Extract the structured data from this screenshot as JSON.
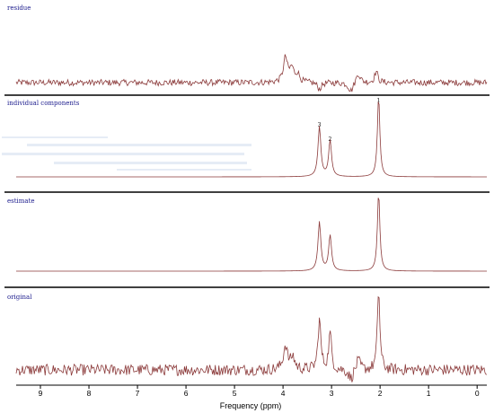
{
  "chart_data": {
    "type": "line",
    "xlabel": "Frequency (ppm)",
    "x_reversed": true,
    "xlim": [
      9.5,
      -0.2
    ],
    "xticks": [
      "9",
      "8",
      "7",
      "6",
      "5",
      "4",
      "3",
      "2",
      "1",
      "0"
    ],
    "xtick_values": [
      9,
      8,
      7,
      6,
      5,
      4,
      3,
      2,
      1,
      0
    ],
    "colors": {
      "trace": "#8b3a3a",
      "label": "#1a1a8c",
      "divider": "#000000"
    },
    "panels": [
      {
        "label": "residue",
        "noise": 0.07,
        "baseline": 0,
        "peaks": [
          {
            "center": 3.95,
            "height": 0.55,
            "width": 0.05
          },
          {
            "center": 3.82,
            "height": 0.3,
            "width": 0.05
          },
          {
            "center": 3.7,
            "height": 0.18,
            "width": 0.05
          },
          {
            "center": 2.45,
            "height": 0.22,
            "width": 0.05
          },
          {
            "center": 2.08,
            "height": 0.25,
            "width": 0.04
          },
          {
            "center": 3.25,
            "height": -0.15,
            "width": 0.05
          },
          {
            "center": 2.6,
            "height": -0.2,
            "width": 0.06
          }
        ]
      },
      {
        "label": "individual components",
        "noise": 0,
        "baseline": 0,
        "peak_labels": [
          {
            "text": "3",
            "x": 3.25
          },
          {
            "text": "2",
            "x": 3.03
          },
          {
            "text": "1",
            "x": 2.03
          }
        ],
        "peaks": [
          {
            "center": 3.25,
            "height": 0.62,
            "width": 0.035
          },
          {
            "center": 3.03,
            "height": 0.45,
            "width": 0.035
          },
          {
            "center": 2.03,
            "height": 1.0,
            "width": 0.03
          }
        ]
      },
      {
        "label": "estimate",
        "noise": 0,
        "baseline": 0,
        "peaks": [
          {
            "center": 3.25,
            "height": 0.62,
            "width": 0.035
          },
          {
            "center": 3.03,
            "height": 0.45,
            "width": 0.035
          },
          {
            "center": 2.03,
            "height": 1.0,
            "width": 0.03
          }
        ]
      },
      {
        "label": "original",
        "noise": 0.07,
        "baseline": 0,
        "peaks": [
          {
            "center": 3.25,
            "height": 0.62,
            "width": 0.035
          },
          {
            "center": 3.03,
            "height": 0.45,
            "width": 0.035
          },
          {
            "center": 2.03,
            "height": 1.0,
            "width": 0.03
          },
          {
            "center": 3.95,
            "height": 0.3,
            "width": 0.05
          },
          {
            "center": 3.8,
            "height": 0.15,
            "width": 0.05
          },
          {
            "center": 2.45,
            "height": 0.12,
            "width": 0.05
          },
          {
            "center": 2.6,
            "height": -0.12,
            "width": 0.06
          }
        ]
      }
    ]
  }
}
